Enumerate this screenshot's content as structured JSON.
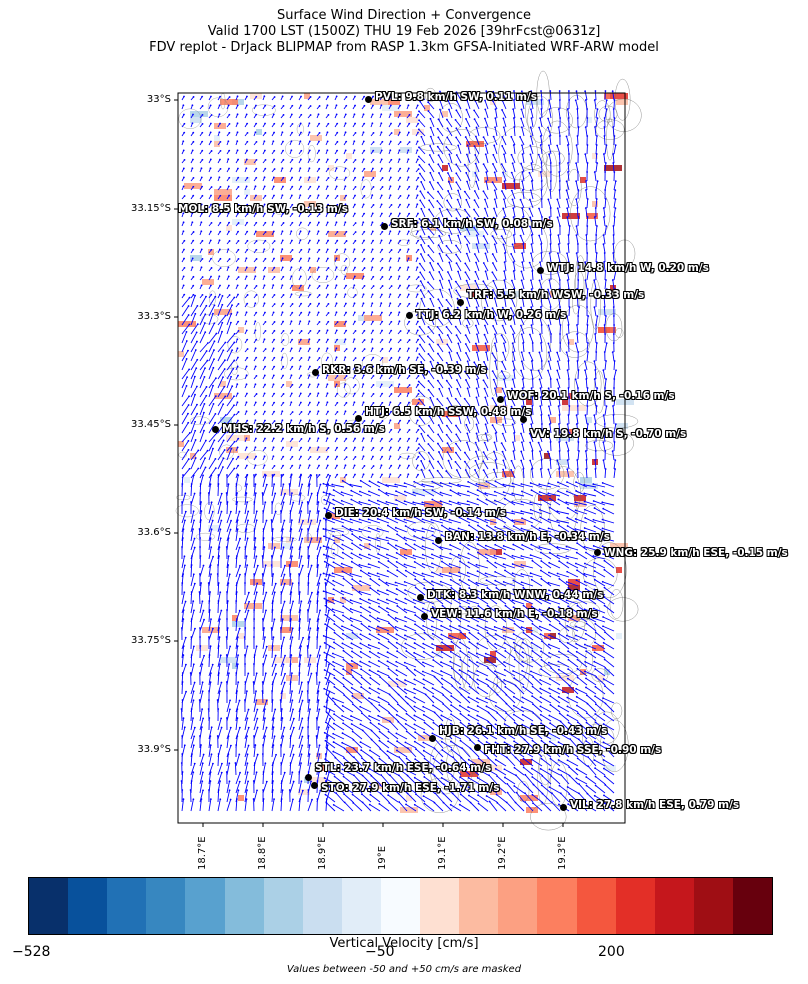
{
  "title": {
    "line1": "Surface Wind Direction + Convergence",
    "line2": "Valid 1700 LST (1500Z) THU 19 Feb 2026 [39hrFcst@0631z]",
    "line3": "FDV replot - DrJack BLIPMAP from RASP 1.3km GFSA-Initiated WRF-ARW model"
  },
  "map": {
    "lat_ticks": [
      "33°S",
      "33.15°S",
      "33.3°S",
      "33.45°S",
      "33.6°S",
      "33.75°S",
      "33.9°S"
    ],
    "lon_ticks": [
      "18.7°E",
      "18.8°E",
      "18.9°E",
      "19°E",
      "19.1°E",
      "19.2°E",
      "19.3°E"
    ],
    "vector_color": "#0000ff",
    "stations": [
      {
        "label": "PVL: 9.8 km/h SW, 0.11 m/s"
      },
      {
        "label": "MOL: 8.5 km/h SW, -0.13 m/s"
      },
      {
        "label": "SRF: 6.1 km/h SW, 0.08 m/s"
      },
      {
        "label": "WTJ: 14.8 km/h W, 0.20 m/s"
      },
      {
        "label": "TRF: 5.5 km/h WSW, -0.33 m/s"
      },
      {
        "label": "TTJ: 6.2 km/h W, 0.26 m/s"
      },
      {
        "label": "RKR: 3.6 km/h SE, -0.39 m/s"
      },
      {
        "label": "WOF: 20.1 km/h S, -0.16 m/s"
      },
      {
        "label": "HTJ: 6.5 km/h SSW, 0.48 m/s"
      },
      {
        "label": "VV: 19.8 km/h S, -0.70 m/s"
      },
      {
        "label": "MHS: 22.2 km/h S, 0.56 m/s"
      },
      {
        "label": "DIE: 20.4 km/h SW, -0.14 m/s"
      },
      {
        "label": "BAN: 13.8 km/h E, -0.34 m/s"
      },
      {
        "label": "WNG: 25.9 km/h ESE, -0.15 m/s"
      },
      {
        "label": "DTK: 8.3 km/h WNW, 0.44 m/s"
      },
      {
        "label": "VEW: 11.6 km/h E, -0.18 m/s"
      },
      {
        "label": "HJB: 26.1 km/h SE, -0.43 m/s"
      },
      {
        "label": "FHT: 27.9 km/h SSE, -0.90 m/s"
      },
      {
        "label": "STL: 23.7 km/h ESE, -0.64 m/s"
      },
      {
        "label": "STO: 27.9 km/h ESE, -1.71 m/s"
      },
      {
        "label": "VIL: 27.8 km/h ESE, 0.79 m/s"
      }
    ]
  },
  "colorbar": {
    "tick_labels": [
      "−528",
      "−50",
      "200"
    ],
    "label": "Vertical Velocity [cm/s]",
    "colors": [
      "#08306b",
      "#08519c",
      "#2171b5",
      "#3787c0",
      "#58a1cf",
      "#84bcdb",
      "#abd0e6",
      "#cadef0",
      "#e1edf8",
      "#f7fbff",
      "#fee0d2",
      "#fcbba1",
      "#fca082",
      "#fc7f5f",
      "#f4573e",
      "#e32f27",
      "#c5171c",
      "#9f0e14",
      "#67000d"
    ]
  },
  "note": "Values between -50 and +50 cm/s are masked"
}
